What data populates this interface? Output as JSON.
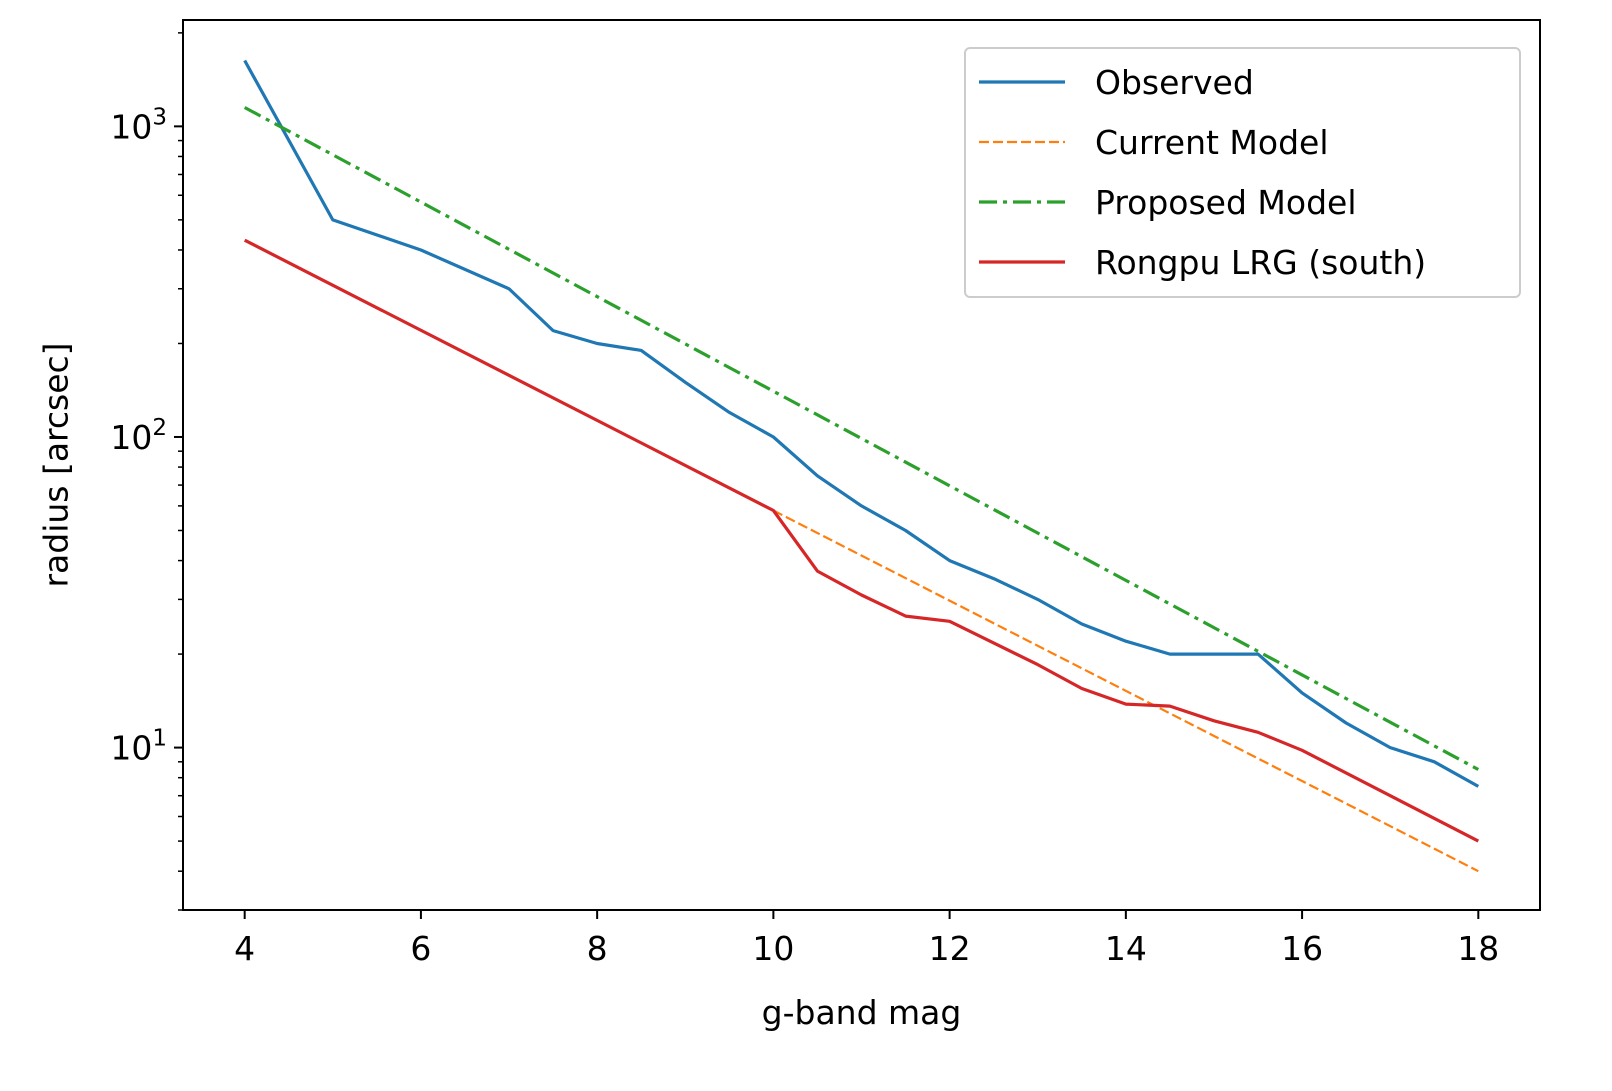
{
  "chart_data": {
    "type": "line",
    "title": "",
    "xlabel": "g-band mag",
    "ylabel": "radius [arcsec]",
    "xlim": [
      3.3,
      18.7
    ],
    "ylim": [
      3,
      2200
    ],
    "yscale": "log",
    "grid": false,
    "legend_position": "top-right",
    "x_ticks": [
      4,
      6,
      8,
      10,
      12,
      14,
      16,
      18
    ],
    "x_tick_labels": [
      "4",
      "6",
      "8",
      "10",
      "12",
      "14",
      "16",
      "18"
    ],
    "y_major_ticks": [
      {
        "value": 10,
        "base": "10",
        "exp": "1"
      },
      {
        "value": 100,
        "base": "10",
        "exp": "2"
      },
      {
        "value": 1000,
        "base": "10",
        "exp": "3"
      }
    ],
    "series": [
      {
        "name": "Observed",
        "color": "#1f77b4",
        "style": "solid",
        "x": [
          4,
          5,
          6,
          7,
          7.5,
          8,
          8.5,
          9,
          9.5,
          10,
          10.5,
          11,
          11.5,
          12,
          12.5,
          13,
          13.5,
          14,
          14.5,
          15,
          15.5,
          16,
          16.5,
          17,
          17.5,
          18
        ],
        "values": [
          1630,
          500,
          400,
          300,
          220,
          200,
          190,
          150,
          120,
          100,
          75,
          60,
          50,
          40,
          35,
          30,
          25,
          22,
          20,
          20,
          20,
          15,
          12,
          10,
          9,
          7.5
        ]
      },
      {
        "name": "Current Model",
        "color": "#ff7f0e",
        "style": "dashed",
        "x": [
          10,
          18
        ],
        "values": [
          58,
          4.0
        ]
      },
      {
        "name": "Proposed Model",
        "color": "#2ca02c",
        "style": "dashdot",
        "x": [
          4,
          18
        ],
        "values": [
          1150,
          8.5
        ]
      },
      {
        "name": "Rongpu LRG (south)",
        "color": "#d62728",
        "style": "solid",
        "x": [
          4,
          10,
          10.5,
          11,
          11.5,
          12,
          13,
          13.5,
          14,
          14.5,
          15,
          15.5,
          16,
          18
        ],
        "values": [
          430,
          58,
          37,
          31,
          26.5,
          25.5,
          18.5,
          15.5,
          13.8,
          13.6,
          12.2,
          11.2,
          9.8,
          5.0
        ]
      }
    ]
  }
}
